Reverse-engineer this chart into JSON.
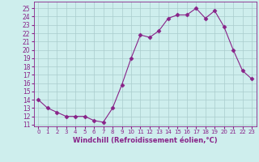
{
  "x": [
    0,
    1,
    2,
    3,
    4,
    5,
    6,
    7,
    8,
    9,
    10,
    11,
    12,
    13,
    14,
    15,
    16,
    17,
    18,
    19,
    20,
    21,
    22,
    23
  ],
  "y": [
    14,
    13,
    12.5,
    12,
    12,
    12,
    11.5,
    11.3,
    13,
    15.8,
    19,
    21.8,
    21.5,
    22.3,
    23.8,
    24.2,
    24.2,
    25.0,
    23.8,
    24.7,
    22.8,
    20,
    17.5,
    16.5
  ],
  "line_color": "#882288",
  "marker": "D",
  "marker_size": 2.5,
  "bg_color": "#ceeeed",
  "grid_color": "#aacccc",
  "xlabel": "Windchill (Refroidissement éolien,°C)",
  "xlabel_color": "#882288",
  "tick_color": "#882288",
  "ylabel_ticks": [
    11,
    12,
    13,
    14,
    15,
    16,
    17,
    18,
    19,
    20,
    21,
    22,
    23,
    24,
    25
  ],
  "xlim": [
    -0.5,
    23.5
  ],
  "ylim": [
    10.8,
    25.8
  ],
  "xticks": [
    0,
    1,
    2,
    3,
    4,
    5,
    6,
    7,
    8,
    9,
    10,
    11,
    12,
    13,
    14,
    15,
    16,
    17,
    18,
    19,
    20,
    21,
    22,
    23
  ],
  "ytick_fontsize": 5.5,
  "xtick_fontsize": 5.0,
  "xlabel_fontsize": 6.0
}
